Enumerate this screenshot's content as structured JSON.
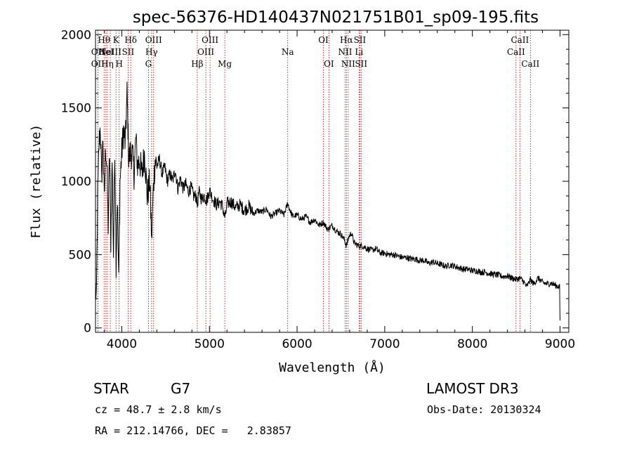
{
  "chart_data": {
    "type": "line",
    "title": "spec-56376-HD140437N021751B01_sp09-195.fits",
    "xlabel": "Wavelength (Å)",
    "ylabel": "Flux (relative)",
    "xlim": [
      3700,
      9100
    ],
    "ylim": [
      -30,
      2030
    ],
    "xticks": [
      4000,
      5000,
      6000,
      7000,
      8000,
      9000
    ],
    "yticks": [
      0,
      500,
      1000,
      1500,
      2000
    ],
    "series": [
      {
        "name": "flux",
        "x": [
          3700,
          3710,
          3725,
          3740,
          3755,
          3770,
          3785,
          3800,
          3815,
          3830,
          3845,
          3860,
          3875,
          3890,
          3905,
          3920,
          3935,
          3950,
          3965,
          3980,
          4000,
          4020,
          4040,
          4060,
          4080,
          4100,
          4120,
          4140,
          4160,
          4180,
          4200,
          4230,
          4260,
          4290,
          4320,
          4340,
          4360,
          4380,
          4400,
          4430,
          4460,
          4490,
          4520,
          4550,
          4580,
          4610,
          4640,
          4670,
          4700,
          4730,
          4760,
          4790,
          4820,
          4850,
          4861,
          4880,
          4910,
          4940,
          4970,
          5000,
          5040,
          5080,
          5120,
          5150,
          5170,
          5183,
          5200,
          5250,
          5300,
          5350,
          5400,
          5450,
          5500,
          5550,
          5600,
          5650,
          5700,
          5750,
          5800,
          5850,
          5893,
          5920,
          5950,
          6000,
          6050,
          6100,
          6150,
          6200,
          6250,
          6300,
          6350,
          6400,
          6450,
          6500,
          6540,
          6563,
          6590,
          6620,
          6650,
          6700,
          6750,
          6800,
          6850,
          6900,
          6950,
          7000,
          7050,
          7100,
          7150,
          7200,
          7250,
          7300,
          7350,
          7400,
          7450,
          7500,
          7550,
          7600,
          7650,
          7700,
          7750,
          7800,
          7850,
          7900,
          7950,
          8000,
          8050,
          8100,
          8150,
          8200,
          8250,
          8300,
          8350,
          8400,
          8450,
          8500,
          8542,
          8580,
          8620,
          8662,
          8700,
          8750,
          8800,
          8850,
          8900,
          8950,
          8995,
          9000
        ],
        "values": [
          280,
          150,
          900,
          1250,
          1380,
          1000,
          1300,
          850,
          1250,
          1100,
          700,
          1200,
          600,
          1150,
          500,
          1250,
          450,
          900,
          300,
          1000,
          1200,
          1350,
          1250,
          1600,
          1150,
          1200,
          1180,
          1050,
          1300,
          1100,
          1150,
          1050,
          1200,
          900,
          1000,
          600,
          950,
          1150,
          1100,
          1150,
          1050,
          1100,
          1000,
          1050,
          1000,
          1080,
          950,
          1020,
          950,
          980,
          930,
          960,
          900,
          900,
          830,
          930,
          880,
          900,
          870,
          940,
          880,
          840,
          860,
          830,
          760,
          760,
          850,
          860,
          820,
          840,
          800,
          830,
          780,
          800,
          790,
          810,
          760,
          780,
          800,
          770,
          850,
          800,
          760,
          770,
          740,
          760,
          720,
          740,
          700,
          720,
          670,
          700,
          660,
          640,
          600,
          560,
          620,
          650,
          580,
          560,
          560,
          540,
          530,
          540,
          510,
          510,
          500,
          500,
          490,
          480,
          480,
          470,
          470,
          460,
          460,
          440,
          450,
          440,
          430,
          420,
          430,
          420,
          410,
          400,
          400,
          390,
          390,
          380,
          380,
          370,
          365,
          360,
          350,
          355,
          340,
          330,
          340,
          320,
          280,
          330,
          300,
          340,
          310,
          300,
          305,
          290,
          280,
          50
        ]
      }
    ],
    "lines": [
      {
        "wl": 3727,
        "label": "OII",
        "row": 1
      },
      {
        "wl": 3727,
        "label": "OII",
        "row": 2
      },
      {
        "wl": 3798,
        "label": "Hθ",
        "row": 0
      },
      {
        "wl": 3819,
        "label": "HeI",
        "row": 1
      },
      {
        "wl": 3835,
        "label": "Hη",
        "row": 2
      },
      {
        "wl": 3869,
        "label": "NeIII",
        "row": 1
      },
      {
        "wl": 3934,
        "label": "K",
        "row": 0
      },
      {
        "wl": 3970,
        "label": "H",
        "row": 2
      },
      {
        "wl": 4072,
        "label": "SII",
        "row": 1
      },
      {
        "wl": 4102,
        "label": "Hδ",
        "row": 0
      },
      {
        "wl": 4304,
        "label": "G",
        "row": 2
      },
      {
        "wl": 4340,
        "label": "Hγ",
        "row": 1
      },
      {
        "wl": 4363,
        "label": "OIII",
        "row": 0
      },
      {
        "wl": 4861,
        "label": "Hβ",
        "row": 2
      },
      {
        "wl": 4959,
        "label": "OIII",
        "row": 1
      },
      {
        "wl": 5007,
        "label": "OIII",
        "row": 0
      },
      {
        "wl": 5175,
        "label": "Mg",
        "row": 2
      },
      {
        "wl": 5893,
        "label": "Na",
        "row": 1
      },
      {
        "wl": 6300,
        "label": "OI",
        "row": 0
      },
      {
        "wl": 6363,
        "label": "OI",
        "row": 2
      },
      {
        "wl": 6548,
        "label": "NII",
        "row": 1
      },
      {
        "wl": 6563,
        "label": "Hα",
        "row": 0
      },
      {
        "wl": 6583,
        "label": "NII",
        "row": 2
      },
      {
        "wl": 6707,
        "label": "Li",
        "row": 1
      },
      {
        "wl": 6716,
        "label": "SII",
        "row": 0
      },
      {
        "wl": 6731,
        "label": "SII",
        "row": 2
      },
      {
        "wl": 8498,
        "label": "CaII",
        "row": 1
      },
      {
        "wl": 8542,
        "label": "CaII",
        "row": 0
      },
      {
        "wl": 8662,
        "label": "CaII",
        "row": 2
      }
    ]
  },
  "info": {
    "class": "STAR",
    "subclass": "G7",
    "survey": "LAMOST DR3",
    "cz": "cz = 48.7 ± 2.8 km/s",
    "obs_date": "Obs-Date: 20130324",
    "radec": "RA = 212.14766, DEC =   2.83857"
  }
}
